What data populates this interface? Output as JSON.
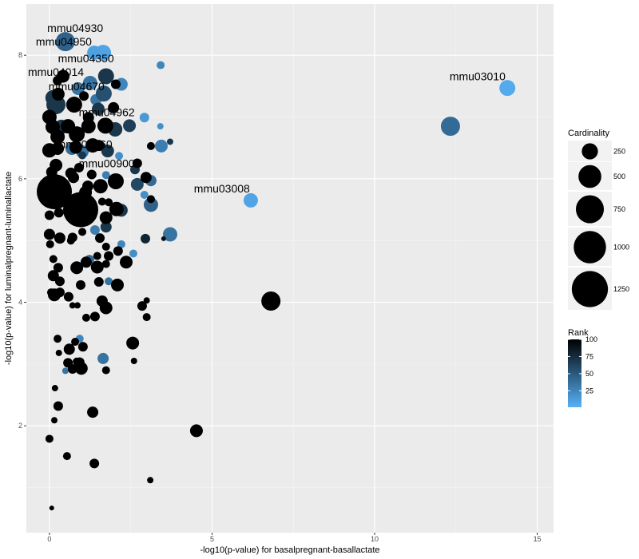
{
  "chart_data": {
    "type": "scatter",
    "xlabel": "-log10(p-value) for basalpregnant-basallactate",
    "ylabel": "-log10(p-value) for luminalpregnant-luminallactate",
    "xlim": [
      -0.71,
      15.5
    ],
    "ylim": [
      0.27,
      8.83
    ],
    "xticks": [
      0,
      5,
      10,
      15
    ],
    "yticks": [
      2,
      4,
      6,
      8
    ],
    "grid": true,
    "size_legend": {
      "title": "Cardinality",
      "values": [
        250,
        500,
        750,
        1000,
        1250
      ]
    },
    "color_legend": {
      "title": "Rank",
      "values": [
        100,
        75,
        50,
        25
      ],
      "low": 1,
      "high": 100,
      "low_color": "#56B1F7",
      "high_color": "#000000"
    },
    "legend_position": "right",
    "point_fields": [
      "x",
      "y",
      "cardinality",
      "rank"
    ],
    "points": [
      [
        14.08,
        7.47,
        244,
        5
      ],
      [
        12.33,
        6.85,
        352,
        40
      ],
      [
        6.19,
        5.65,
        198,
        8
      ],
      [
        6.81,
        4.02,
        352,
        100
      ],
      [
        4.52,
        1.92,
        156,
        100
      ],
      [
        3.1,
        1.12,
        39,
        100
      ],
      [
        0.07,
        0.67,
        22,
        100
      ],
      [
        1.38,
        1.39,
        88,
        100
      ],
      [
        0.54,
        1.51,
        61,
        100
      ],
      [
        0,
        1.79,
        61,
        100
      ],
      [
        1.33,
        2.22,
        120,
        100
      ],
      [
        0.27,
        2.32,
        88,
        100
      ],
      [
        0.15,
        2.09,
        39,
        100
      ],
      [
        0.17,
        2.61,
        39,
        100
      ],
      [
        0.49,
        8.22,
        352,
        45
      ],
      [
        1.38,
        8.04,
        198,
        10
      ],
      [
        1.65,
        8.04,
        244,
        8
      ],
      [
        3.42,
        7.84,
        61,
        25
      ],
      [
        0.15,
        5.79,
        1182,
        100
      ],
      [
        0.96,
        5.5,
        1182,
        100
      ],
      [
        3.71,
        5.1,
        198,
        35
      ],
      [
        3.44,
        6.53,
        156,
        30
      ],
      [
        2.92,
        6.99,
        88,
        15
      ],
      [
        3.41,
        6.85,
        39,
        20
      ],
      [
        3.71,
        6.6,
        39,
        70
      ],
      [
        2.46,
        6.86,
        156,
        65
      ],
      [
        3.12,
        5.58,
        198,
        45
      ],
      [
        3.12,
        6.53,
        61,
        100
      ],
      [
        3.12,
        5.67,
        61,
        100
      ],
      [
        2.95,
        5.03,
        88,
        80
      ],
      [
        3.51,
        5.03,
        22,
        90
      ],
      [
        2.99,
        4.03,
        39,
        100
      ],
      [
        2.85,
        3.94,
        88,
        100
      ],
      [
        2.99,
        3.76,
        61,
        100
      ],
      [
        2.56,
        3.34,
        156,
        100
      ],
      [
        2.6,
        3.05,
        39,
        100
      ],
      [
        2.09,
        4.28,
        156,
        100
      ],
      [
        2.36,
        4.65,
        156,
        100
      ],
      [
        2.21,
        4.94,
        61,
        25
      ],
      [
        2.58,
        4.79,
        61,
        20
      ],
      [
        2.11,
        4.83,
        88,
        100
      ],
      [
        1.74,
        3.91,
        156,
        100
      ],
      [
        1.62,
        4.02,
        120,
        100
      ],
      [
        1.4,
        3.77,
        88,
        100
      ],
      [
        1.13,
        3.75,
        61,
        100
      ],
      [
        1.65,
        3.09,
        120,
        35
      ],
      [
        1.74,
        2.9,
        61,
        100
      ],
      [
        0.98,
        2.93,
        156,
        100
      ],
      [
        0.93,
        3.03,
        88,
        100
      ],
      [
        0.84,
        3.04,
        61,
        100
      ],
      [
        0.61,
        3.24,
        120,
        100
      ],
      [
        0.71,
        2.92,
        88,
        100
      ],
      [
        0.57,
        3.02,
        88,
        100
      ],
      [
        0.49,
        2.89,
        39,
        35
      ],
      [
        1.03,
        3.28,
        88,
        100
      ],
      [
        0.93,
        3.41,
        61,
        25
      ],
      [
        0.79,
        3.36,
        61,
        100
      ],
      [
        0.29,
        3.18,
        39,
        100
      ],
      [
        0.25,
        3.41,
        61,
        100
      ],
      [
        0.71,
        3.95,
        39,
        100
      ],
      [
        0.86,
        3.95,
        39,
        100
      ],
      [
        0.59,
        4.09,
        88,
        100
      ],
      [
        0.15,
        4.12,
        156,
        100
      ],
      [
        0.32,
        4.16,
        88,
        100
      ],
      [
        0.05,
        4.16,
        61,
        100
      ],
      [
        0.12,
        4.43,
        120,
        100
      ],
      [
        0.32,
        4.34,
        88,
        100
      ],
      [
        0.27,
        4.56,
        88,
        100
      ],
      [
        0.12,
        4.7,
        61,
        100
      ],
      [
        0.96,
        4.28,
        88,
        100
      ],
      [
        0.84,
        4.56,
        156,
        100
      ],
      [
        1.13,
        4.65,
        120,
        100
      ],
      [
        1.47,
        4.57,
        156,
        100
      ],
      [
        1.52,
        4.33,
        88,
        100
      ],
      [
        1.82,
        4.34,
        61,
        35
      ],
      [
        1.82,
        4.75,
        88,
        100
      ],
      [
        1.74,
        4.62,
        61,
        100
      ],
      [
        1.47,
        4.75,
        61,
        100
      ],
      [
        1.23,
        4.69,
        88,
        40
      ],
      [
        1.55,
        5.04,
        88,
        100
      ],
      [
        1.74,
        4.9,
        61,
        100
      ],
      [
        1.01,
        5.14,
        61,
        100
      ],
      [
        0.71,
        5.05,
        88,
        100
      ],
      [
        0.66,
        5.0,
        61,
        100
      ],
      [
        0.32,
        5.04,
        120,
        100
      ],
      [
        0,
        5.1,
        120,
        100
      ],
      [
        0.02,
        4.94,
        61,
        100
      ],
      [
        1.4,
        5.17,
        88,
        30
      ],
      [
        1.74,
        5.22,
        120,
        70
      ],
      [
        1.74,
        5.37,
        156,
        100
      ],
      [
        2.06,
        5.51,
        198,
        100
      ],
      [
        2.21,
        5.49,
        156,
        70
      ],
      [
        1.62,
        5.63,
        61,
        100
      ],
      [
        1.82,
        5.62,
        61,
        100
      ],
      [
        0.29,
        5.45,
        88,
        100
      ],
      [
        0,
        5.41,
        88,
        100
      ],
      [
        2.04,
        5.96,
        244,
        100
      ],
      [
        1.57,
        5.88,
        198,
        100
      ],
      [
        1.18,
        5.88,
        120,
        100
      ],
      [
        1.11,
        5.78,
        156,
        100
      ],
      [
        0.74,
        6.02,
        120,
        100
      ],
      [
        0.91,
        6.18,
        88,
        100
      ],
      [
        1.3,
        6.07,
        88,
        100
      ],
      [
        1.74,
        6.06,
        61,
        30
      ],
      [
        2.7,
        6.25,
        88,
        100
      ],
      [
        2.63,
        6.15,
        88,
        70
      ],
      [
        2.97,
        6.02,
        120,
        100
      ],
      [
        3.12,
        5.97,
        120,
        40
      ],
      [
        2.7,
        5.91,
        156,
        60
      ],
      [
        2.92,
        5.74,
        61,
        20
      ],
      [
        2.14,
        6.37,
        61,
        20
      ],
      [
        1.79,
        6.45,
        156,
        70
      ],
      [
        1.33,
        6.54,
        198,
        100
      ],
      [
        1.52,
        6.54,
        120,
        100
      ],
      [
        1.01,
        6.44,
        156,
        35
      ],
      [
        0.81,
        6.51,
        156,
        100
      ],
      [
        0.69,
        6.49,
        156,
        40
      ],
      [
        0.2,
        6.22,
        156,
        100
      ],
      [
        0.07,
        6.11,
        120,
        100
      ],
      [
        0,
        6.46,
        198,
        100
      ],
      [
        0.25,
        6.49,
        156,
        100
      ],
      [
        0.25,
        6.68,
        198,
        100
      ],
      [
        0.1,
        6.84,
        198,
        100
      ],
      [
        0,
        7.0,
        198,
        100
      ],
      [
        0.37,
        6.84,
        198,
        70
      ],
      [
        0.57,
        6.85,
        198,
        100
      ],
      [
        0.84,
        6.72,
        244,
        100
      ],
      [
        1.2,
        6.85,
        198,
        100
      ],
      [
        1.72,
        6.86,
        244,
        100
      ],
      [
        2.02,
        6.8,
        198,
        70
      ],
      [
        1.2,
        6.99,
        120,
        100
      ],
      [
        1.5,
        7.13,
        156,
        70
      ],
      [
        1.97,
        7.15,
        120,
        100
      ],
      [
        0.76,
        7.2,
        244,
        100
      ],
      [
        0.2,
        7.2,
        352,
        70
      ],
      [
        0.27,
        7.37,
        156,
        100
      ],
      [
        0.12,
        7.31,
        244,
        70
      ],
      [
        1.67,
        7.38,
        244,
        55
      ],
      [
        2.21,
        7.53,
        156,
        25
      ],
      [
        2.04,
        7.53,
        88,
        100
      ],
      [
        1.74,
        7.66,
        244,
        70
      ],
      [
        1.25,
        7.55,
        198,
        35
      ],
      [
        0.88,
        7.46,
        156,
        35
      ],
      [
        0.42,
        7.66,
        156,
        100
      ],
      [
        0.25,
        7.59,
        88,
        100
      ],
      [
        1.06,
        7.34,
        88,
        100
      ],
      [
        1.43,
        7.28,
        120,
        35
      ],
      [
        1.01,
        6.38,
        61,
        70
      ],
      [
        0.66,
        6.09,
        120,
        100
      ],
      [
        0.44,
        5.89,
        156,
        100
      ]
    ],
    "labels": [
      {
        "text": "mmu04950",
        "x": 0.47,
        "y": 8.22
      },
      {
        "text": "mmu04930",
        "x": 0.82,
        "y": 8.22
      },
      {
        "text": "mmu04014",
        "x": -0.25,
        "y": 7.73
      },
      {
        "text": "mmu04350",
        "x": 1.15,
        "y": 7.73
      },
      {
        "text": "mmu04670",
        "x": 0.86,
        "y": 7.5
      },
      {
        "text": "mmu04962",
        "x": 1.79,
        "y": 7.08
      },
      {
        "text": "mmu04360",
        "x": 1.1,
        "y": 6.56
      },
      {
        "text": "mmu00900",
        "x": 1.79,
        "y": 6.25
      },
      {
        "text": "mmu03008",
        "x": 5.33,
        "y": 5.84
      },
      {
        "text": "mmu03010",
        "x": 13.19,
        "y": 7.66
      }
    ]
  }
}
